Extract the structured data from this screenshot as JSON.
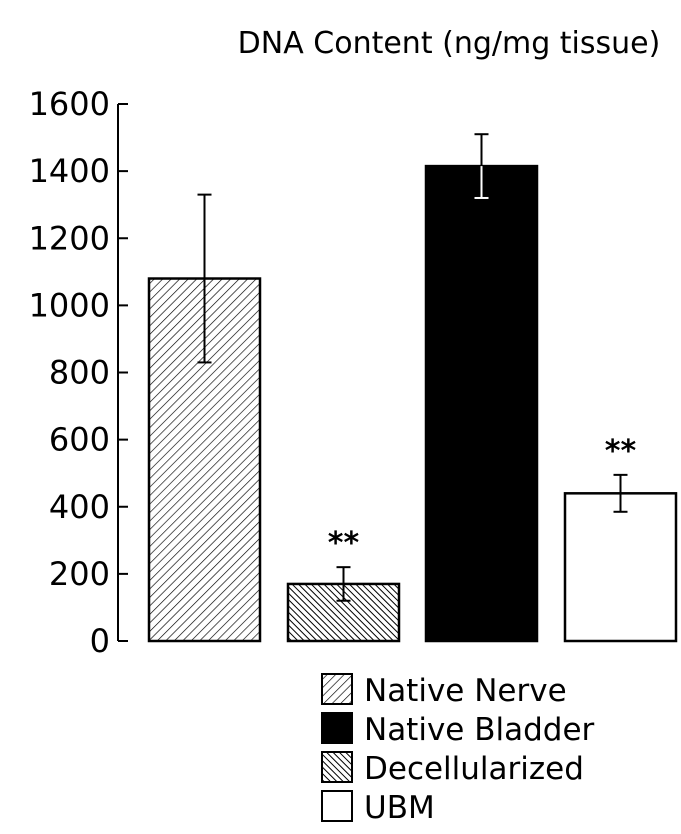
{
  "chart_data": {
    "type": "bar",
    "title": "DNA Content (ng/mg tissue)",
    "xlabel": "",
    "ylabel": "",
    "ylim": [
      0,
      1600
    ],
    "yticks": [
      0,
      200,
      400,
      600,
      800,
      1000,
      1200,
      1400,
      1600
    ],
    "categories": [
      "Native Nerve",
      "Decellularized",
      "Native Bladder",
      "UBM"
    ],
    "values": [
      1080,
      170,
      1415,
      440
    ],
    "errors": [
      250,
      50,
      95,
      55
    ],
    "annotations": [
      "",
      "**",
      "",
      "**"
    ],
    "fills": [
      "hatch-light",
      "hatch-dense",
      "solid-black",
      "white"
    ],
    "legend": {
      "placement": "bottom",
      "entries": [
        "Native Nerve",
        "Native Bladder",
        "Decellularized",
        "UBM"
      ],
      "fills": [
        "hatch-light",
        "solid-black",
        "hatch-dense",
        "white"
      ]
    },
    "grid": false
  }
}
